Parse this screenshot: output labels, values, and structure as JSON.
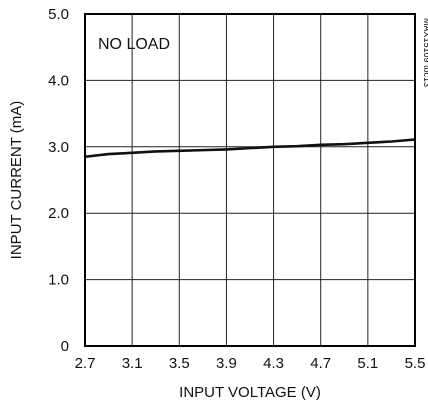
{
  "chart_data": {
    "type": "line",
    "title": "",
    "xlabel": "INPUT VOLTAGE (V)",
    "ylabel": "INPUT CURRENT (mA)",
    "xlim": [
      2.7,
      5.5
    ],
    "ylim": [
      0,
      5.0
    ],
    "x_ticks": [
      "2.7",
      "3.1",
      "3.5",
      "3.9",
      "4.3",
      "4.7",
      "5.1",
      "5.5"
    ],
    "y_ticks": [
      "0",
      "1.0",
      "2.0",
      "3.0",
      "4.0",
      "5.0"
    ],
    "grid": true,
    "annotation": "NO LOAD",
    "figure_id": "MAX15109 toc13",
    "series": [
      {
        "x": [
          2.7,
          2.9,
          3.1,
          3.3,
          3.5,
          3.7,
          3.9,
          4.1,
          4.3,
          4.5,
          4.7,
          4.9,
          5.1,
          5.3,
          5.5
        ],
        "values": [
          2.85,
          2.89,
          2.91,
          2.93,
          2.94,
          2.95,
          2.96,
          2.98,
          3.0,
          3.01,
          3.03,
          3.04,
          3.06,
          3.08,
          3.11
        ]
      }
    ],
    "colors": {
      "line": "#111111",
      "grid": "#222222",
      "frame": "#000000"
    }
  }
}
